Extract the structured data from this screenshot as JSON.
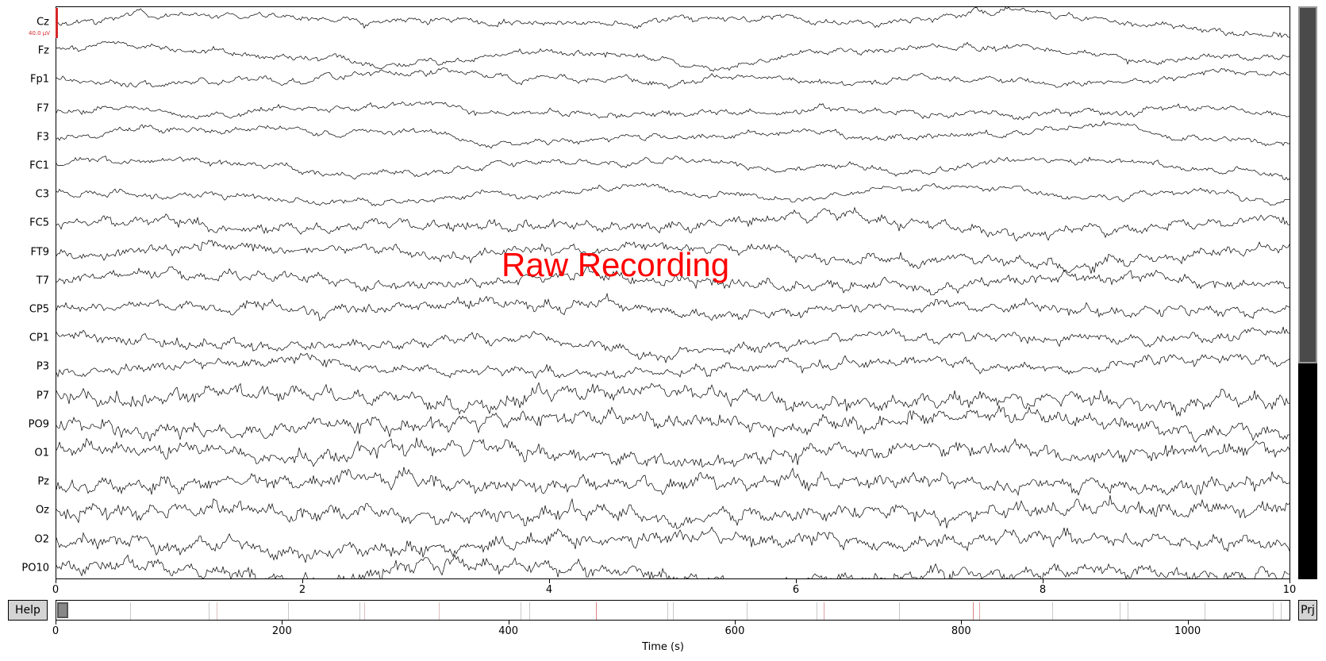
{
  "overlay_title": "Raw Recording",
  "scale_label": "40.0 µV",
  "channels": [
    "Cz",
    "Fz",
    "Fp1",
    "F7",
    "F3",
    "FC1",
    "C3",
    "FC5",
    "FT9",
    "T7",
    "CP5",
    "CP1",
    "P3",
    "P7",
    "PO9",
    "O1",
    "Pz",
    "Oz",
    "O2",
    "PO10"
  ],
  "time_axis": {
    "ticks": [
      "0",
      "2",
      "4",
      "6",
      "8",
      "10"
    ],
    "range": [
      0,
      10
    ]
  },
  "overview_axis": {
    "ticks": [
      "0",
      "200",
      "400",
      "600",
      "800",
      "1000"
    ],
    "range": [
      0,
      1090
    ],
    "label": "Time (s)"
  },
  "buttons": {
    "help": "Help",
    "projectors": "Prj"
  },
  "events": [
    {
      "t": 65,
      "color": "#c8c8c8"
    },
    {
      "t": 135,
      "color": "#c8c8c8"
    },
    {
      "t": 142,
      "color": "#e0c0c0"
    },
    {
      "t": 205,
      "color": "#c8c8c8"
    },
    {
      "t": 268,
      "color": "#c8c8c8"
    },
    {
      "t": 272,
      "color": "#e0c0c0"
    },
    {
      "t": 338,
      "color": "#e0c0c0"
    },
    {
      "t": 410,
      "color": "#c8c8c8"
    },
    {
      "t": 418,
      "color": "#c8c8c8"
    },
    {
      "t": 477,
      "color": "#e08080"
    },
    {
      "t": 540,
      "color": "#c8c8c8"
    },
    {
      "t": 545,
      "color": "#c8c8c8"
    },
    {
      "t": 610,
      "color": "#c8c8c8"
    },
    {
      "t": 672,
      "color": "#c8c8c8"
    },
    {
      "t": 678,
      "color": "#e0a0a0"
    },
    {
      "t": 745,
      "color": "#c8c8c8"
    },
    {
      "t": 810,
      "color": "#e08080"
    },
    {
      "t": 816,
      "color": "#e0a0a0"
    },
    {
      "t": 880,
      "color": "#c8c8c8"
    },
    {
      "t": 940,
      "color": "#c8c8c8"
    },
    {
      "t": 947,
      "color": "#c8c8c8"
    },
    {
      "t": 1015,
      "color": "#c8c8c8"
    },
    {
      "t": 1075,
      "color": "#c8c8c8"
    },
    {
      "t": 1082,
      "color": "#c8c8c8"
    }
  ],
  "view_window": {
    "start": 0,
    "end": 10
  },
  "colors": {
    "trace": "#000000",
    "scale": "#d62728",
    "title": "#ff0000"
  }
}
